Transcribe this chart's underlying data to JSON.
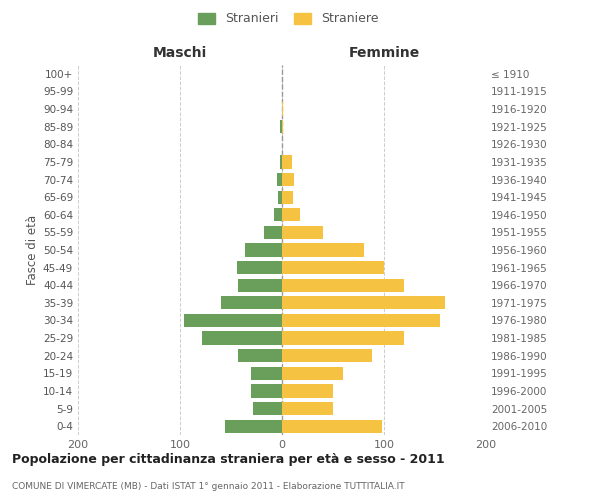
{
  "age_groups": [
    "0-4",
    "5-9",
    "10-14",
    "15-19",
    "20-24",
    "25-29",
    "30-34",
    "35-39",
    "40-44",
    "45-49",
    "50-54",
    "55-59",
    "60-64",
    "65-69",
    "70-74",
    "75-79",
    "80-84",
    "85-89",
    "90-94",
    "95-99",
    "100+"
  ],
  "birth_years": [
    "2006-2010",
    "2001-2005",
    "1996-2000",
    "1991-1995",
    "1986-1990",
    "1981-1985",
    "1976-1980",
    "1971-1975",
    "1966-1970",
    "1961-1965",
    "1956-1960",
    "1951-1955",
    "1946-1950",
    "1941-1945",
    "1936-1940",
    "1931-1935",
    "1926-1930",
    "1921-1925",
    "1916-1920",
    "1911-1915",
    "≤ 1910"
  ],
  "maschi": [
    56,
    28,
    30,
    30,
    43,
    78,
    96,
    60,
    43,
    44,
    36,
    18,
    8,
    4,
    5,
    2,
    0,
    2,
    0,
    0,
    0
  ],
  "femmine": [
    98,
    50,
    50,
    60,
    88,
    120,
    155,
    160,
    120,
    100,
    80,
    40,
    18,
    11,
    12,
    10,
    0,
    1,
    1,
    0,
    0
  ],
  "maschi_color": "#6a9e5b",
  "femmine_color": "#f5c242",
  "grid_color": "#cccccc",
  "title": "Popolazione per cittadinanza straniera per età e sesso - 2011",
  "subtitle": "COMUNE DI VIMERCATE (MB) - Dati ISTAT 1° gennaio 2011 - Elaborazione TUTTITALIA.IT",
  "label_maschi": "Maschi",
  "label_femmine": "Femmine",
  "ylabel_left": "Fasce di età",
  "legend_maschi": "Stranieri",
  "legend_femmine": "Straniere",
  "xlim": 200,
  "bar_height": 0.75
}
